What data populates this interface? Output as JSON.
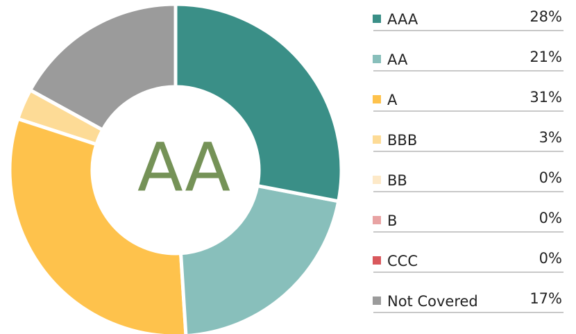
{
  "chart_data": {
    "type": "pie",
    "donut": true,
    "center_label": "AA",
    "categories": [
      "AAA",
      "AA",
      "A",
      "BBB",
      "BB",
      "B",
      "CCC",
      "Not Covered"
    ],
    "values": [
      28,
      21,
      31,
      3,
      0,
      0,
      0,
      17
    ],
    "value_labels": [
      "28%",
      "21%",
      "31%",
      "3%",
      "0%",
      "0%",
      "0%",
      "17%"
    ],
    "colors": [
      "#3a8f87",
      "#88bfbb",
      "#fec24c",
      "#fddb96",
      "#fde9c8",
      "#e8a3a3",
      "#d9585c",
      "#9b9b9b"
    ]
  }
}
